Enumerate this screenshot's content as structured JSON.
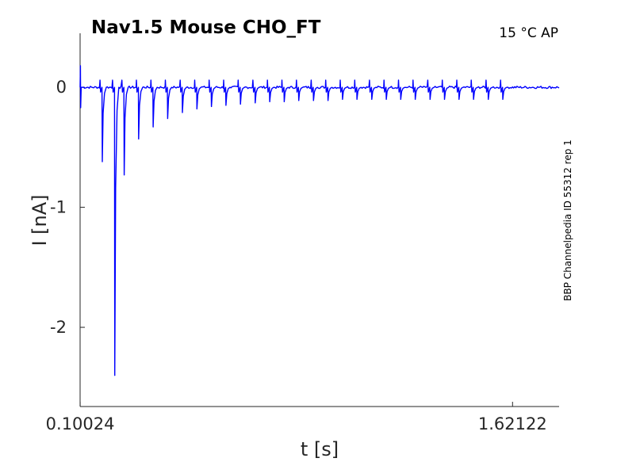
{
  "chart_data": {
    "type": "line",
    "title": "Nav1.5  Mouse  CHO_FT",
    "condition": "15 °C  AP",
    "side_label": "BBP Channelpedia ID 55312 rep 1",
    "xlabel": "t [s]",
    "ylabel": "I [nA]",
    "x_ticks": [
      "0.10024",
      "1.62122"
    ],
    "x_tick_values": [
      0.10024,
      1.62122
    ],
    "y_ticks": [
      "0",
      "-1",
      "-2"
    ],
    "y_tick_values": [
      0,
      -1,
      -2
    ],
    "xlim": [
      0.1,
      1.785
    ],
    "ylim": [
      -2.66,
      0.45
    ],
    "grid": false,
    "series": [
      {
        "color": "#0000ff",
        "spikes": [
          {
            "t": 0.178,
            "i": -0.62
          },
          {
            "t": 0.222,
            "i": -2.4
          },
          {
            "t": 0.255,
            "i": -0.73
          },
          {
            "t": 0.306,
            "i": -0.43
          },
          {
            "t": 0.357,
            "i": -0.33
          },
          {
            "t": 0.408,
            "i": -0.26
          },
          {
            "t": 0.46,
            "i": -0.21
          },
          {
            "t": 0.511,
            "i": -0.18
          },
          {
            "t": 0.562,
            "i": -0.16
          },
          {
            "t": 0.613,
            "i": -0.15
          },
          {
            "t": 0.664,
            "i": -0.14
          },
          {
            "t": 0.716,
            "i": -0.13
          },
          {
            "t": 0.767,
            "i": -0.12
          },
          {
            "t": 0.818,
            "i": -0.12
          },
          {
            "t": 0.869,
            "i": -0.11
          },
          {
            "t": 0.921,
            "i": -0.11
          },
          {
            "t": 0.972,
            "i": -0.11
          },
          {
            "t": 1.023,
            "i": -0.1
          },
          {
            "t": 1.074,
            "i": -0.1
          },
          {
            "t": 1.126,
            "i": -0.1
          },
          {
            "t": 1.177,
            "i": -0.1
          },
          {
            "t": 1.228,
            "i": -0.1
          },
          {
            "t": 1.279,
            "i": -0.1
          },
          {
            "t": 1.331,
            "i": -0.1
          },
          {
            "t": 1.382,
            "i": -0.1
          },
          {
            "t": 1.433,
            "i": -0.1
          },
          {
            "t": 1.484,
            "i": -0.1
          },
          {
            "t": 1.536,
            "i": -0.1
          },
          {
            "t": 1.587,
            "i": -0.1
          }
        ]
      }
    ]
  }
}
